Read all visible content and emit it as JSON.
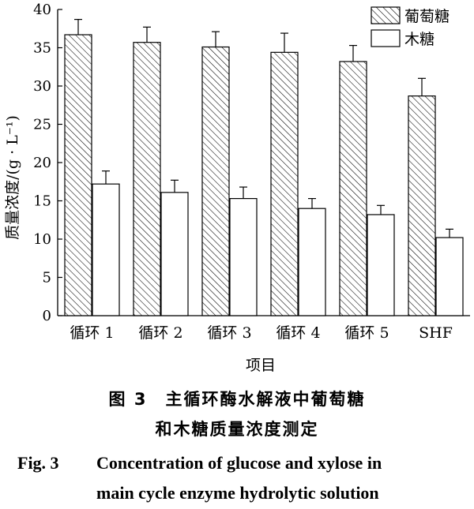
{
  "chart_data": {
    "type": "bar",
    "categories": [
      "循环 1",
      "循环 2",
      "循环 3",
      "循环 4",
      "循环 5",
      "SHF"
    ],
    "series": [
      {
        "name": "葡萄糖",
        "values": [
          36.7,
          35.7,
          35.1,
          34.4,
          33.2,
          28.7
        ],
        "errors": [
          2.0,
          2.0,
          2.0,
          2.5,
          2.1,
          2.3
        ],
        "pattern": "hatched"
      },
      {
        "name": "木糖",
        "values": [
          17.2,
          16.1,
          15.3,
          14.0,
          13.2,
          10.2
        ],
        "errors": [
          1.7,
          1.6,
          1.5,
          1.3,
          1.2,
          1.1
        ],
        "pattern": "white"
      }
    ],
    "xlabel": "项目",
    "ylabel": "质量浓度/(g · L⁻¹)",
    "ylim": [
      0,
      40
    ],
    "yticks": [
      0,
      5,
      10,
      15,
      20,
      25,
      30,
      35,
      40
    ],
    "legend_position": "top-right",
    "grid": false
  },
  "caption": {
    "cn_line1": "图 3　主循环酶水解液中葡萄糖",
    "cn_line2": "和木糖质量浓度测定",
    "en_fig": "Fig. 3",
    "en_line1": "Concentration of glucose and xylose in",
    "en_line2": "main cycle enzyme hydrolytic solution"
  }
}
